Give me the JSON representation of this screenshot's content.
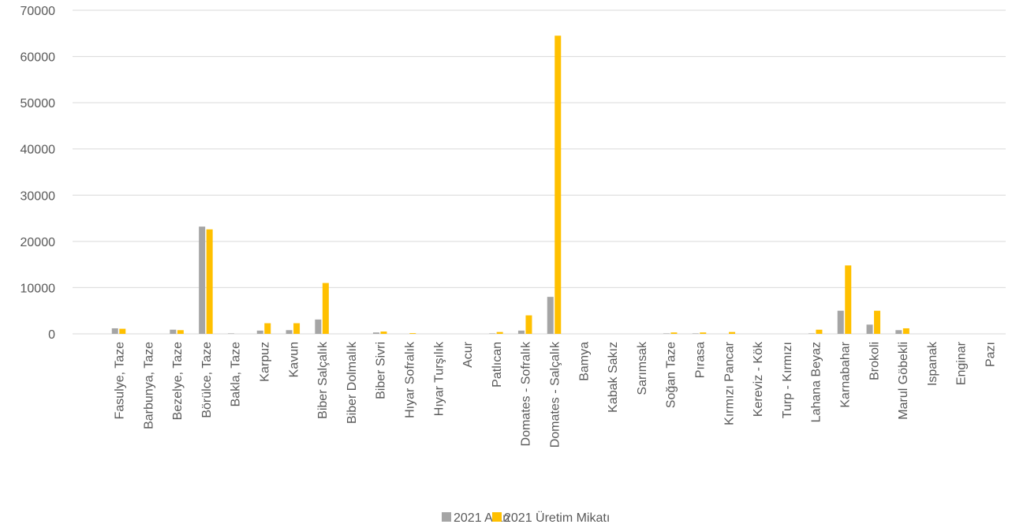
{
  "chart_data": {
    "type": "bar",
    "categories": [
      "Fasulye, Taze",
      "Barbunya, Taze",
      "Bezelye, Taze",
      "Börülce, Taze",
      "Bakla, Taze",
      "Karpuz",
      "Kavun",
      "Biber Salçalık",
      "Biber Dolmalık",
      "Biber Sivri",
      "Hıyar Sofralık",
      "Hıyar Turşılık",
      "Acur",
      "Patlıcan",
      "Domates - Sofralık",
      "Domates - Salçalık",
      "Bamya",
      "Kabak Sakız",
      "Sarımsak",
      "Soğan Taze",
      "Pırasa",
      "Kırmızı Pancar",
      "Kereviz - Kök",
      "Turp - Kırmızı",
      "Lahana Beyaz",
      "Karnabahar",
      "Brokoli",
      "Marul Göbekli",
      "Ispanak",
      "Enginar",
      "Pazı"
    ],
    "series": [
      {
        "name": "2021 Alan",
        "color": "#a5a5a5",
        "values": [
          1200,
          0,
          900,
          23200,
          100,
          700,
          800,
          3100,
          0,
          300,
          0,
          0,
          0,
          100,
          700,
          8000,
          0,
          0,
          0,
          100,
          100,
          0,
          0,
          0,
          100,
          5000,
          2000,
          800,
          0,
          0,
          0
        ]
      },
      {
        "name": "2021 Üretim Mikatı",
        "color": "#ffc000",
        "values": [
          1100,
          0,
          800,
          22600,
          0,
          2300,
          2300,
          11000,
          0,
          500,
          150,
          0,
          0,
          400,
          4000,
          64500,
          0,
          0,
          0,
          300,
          300,
          400,
          0,
          0,
          900,
          14800,
          5000,
          1200,
          0,
          0,
          0
        ]
      }
    ],
    "yticks": [
      "0",
      "10000",
      "20000",
      "30000",
      "40000",
      "50000",
      "60000",
      "70000"
    ],
    "ylim": [
      0,
      70000
    ],
    "grid": true,
    "legend": "bottom"
  }
}
